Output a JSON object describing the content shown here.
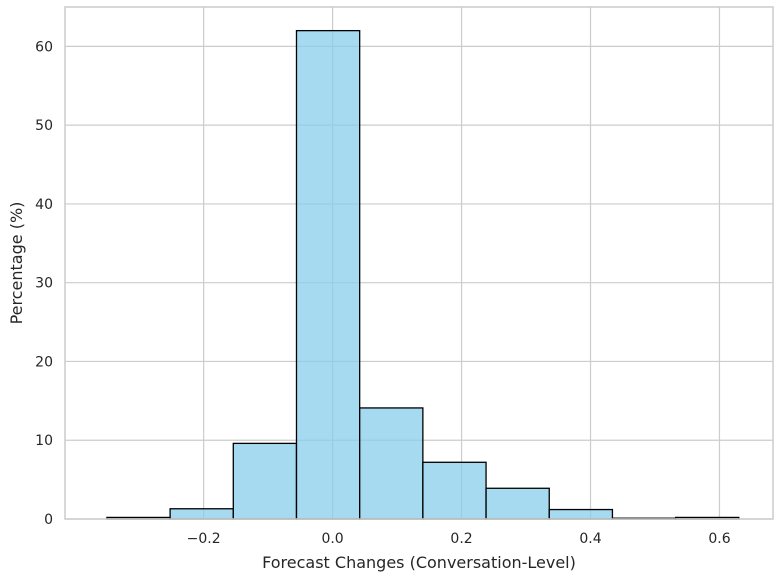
{
  "chart_data": {
    "type": "bar",
    "subtype": "histogram",
    "title": "",
    "xlabel": "Forecast Changes (Conversation-Level)",
    "ylabel": "Percentage (%)",
    "xlim": [
      -0.415,
      0.683
    ],
    "ylim": [
      0,
      65
    ],
    "xticks": [
      -0.2,
      0.0,
      0.2,
      0.4,
      0.6
    ],
    "xtick_labels": [
      "−0.2",
      "0.0",
      "0.2",
      "0.4",
      "0.6"
    ],
    "yticks": [
      0,
      10,
      20,
      30,
      40,
      50,
      60
    ],
    "ytick_labels": [
      "0",
      "10",
      "20",
      "30",
      "40",
      "50",
      "60"
    ],
    "grid": true,
    "bar_color": "#87ceeb",
    "edge_color": "#000000",
    "bins": [
      {
        "start": -0.35,
        "end": -0.252,
        "value": 0.2
      },
      {
        "start": -0.252,
        "end": -0.154,
        "value": 1.3
      },
      {
        "start": -0.154,
        "end": -0.056,
        "value": 9.6
      },
      {
        "start": -0.056,
        "end": 0.042,
        "value": 62.0
      },
      {
        "start": 0.042,
        "end": 0.14,
        "value": 14.1
      },
      {
        "start": 0.14,
        "end": 0.238,
        "value": 7.2
      },
      {
        "start": 0.238,
        "end": 0.336,
        "value": 3.9
      },
      {
        "start": 0.336,
        "end": 0.434,
        "value": 1.2
      },
      {
        "start": 0.434,
        "end": 0.532,
        "value": 0.1
      },
      {
        "start": 0.532,
        "end": 0.63,
        "value": 0.2
      }
    ]
  }
}
